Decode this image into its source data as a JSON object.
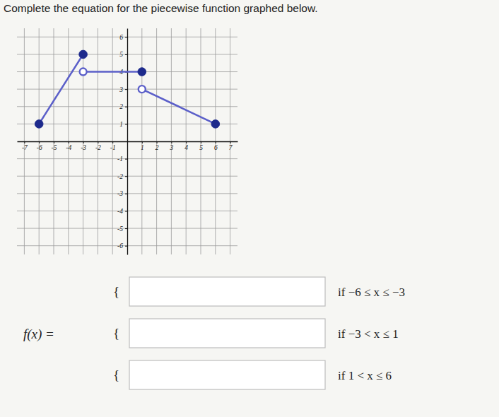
{
  "chart_data": {
    "type": "line",
    "title": "Complete the equation for the piecewise function graphed below.",
    "xlim": [
      -7.5,
      7.5
    ],
    "ylim": [
      -6.5,
      6.5
    ],
    "xticks": [
      -7,
      -6,
      -5,
      -4,
      -3,
      -2,
      -1,
      1,
      2,
      3,
      4,
      5,
      6,
      7
    ],
    "yticks": [
      -6,
      -5,
      -4,
      -3,
      -2,
      -1,
      1,
      2,
      3,
      4,
      5,
      6
    ],
    "grid": true,
    "series": [
      {
        "type": "line",
        "color": "#5b5fc9",
        "x": [
          -6,
          -3
        ],
        "values": [
          1,
          5
        ]
      },
      {
        "type": "line",
        "color": "#5b5fc9",
        "x": [
          -3,
          1
        ],
        "values": [
          4,
          4
        ]
      },
      {
        "type": "line",
        "color": "#5b5fc9",
        "x": [
          1,
          6
        ],
        "values": [
          3,
          1
        ]
      },
      {
        "type": "scatter",
        "marker": "closed",
        "color": "#1d2a8c",
        "x": [
          -6,
          -3,
          1,
          6
        ],
        "values": [
          1,
          5,
          4,
          1
        ]
      },
      {
        "type": "scatter",
        "marker": "open",
        "color": "#5b5fc9",
        "x": [
          -3,
          1
        ],
        "values": [
          4,
          3
        ]
      }
    ]
  },
  "equation": {
    "lhs": "f(x) =",
    "brace": "{",
    "rows": [
      {
        "condition": "if −6 ≤ x ≤ −3"
      },
      {
        "condition": "if −3 < x ≤ 1"
      },
      {
        "condition": "if 1 < x ≤ 6"
      }
    ]
  }
}
